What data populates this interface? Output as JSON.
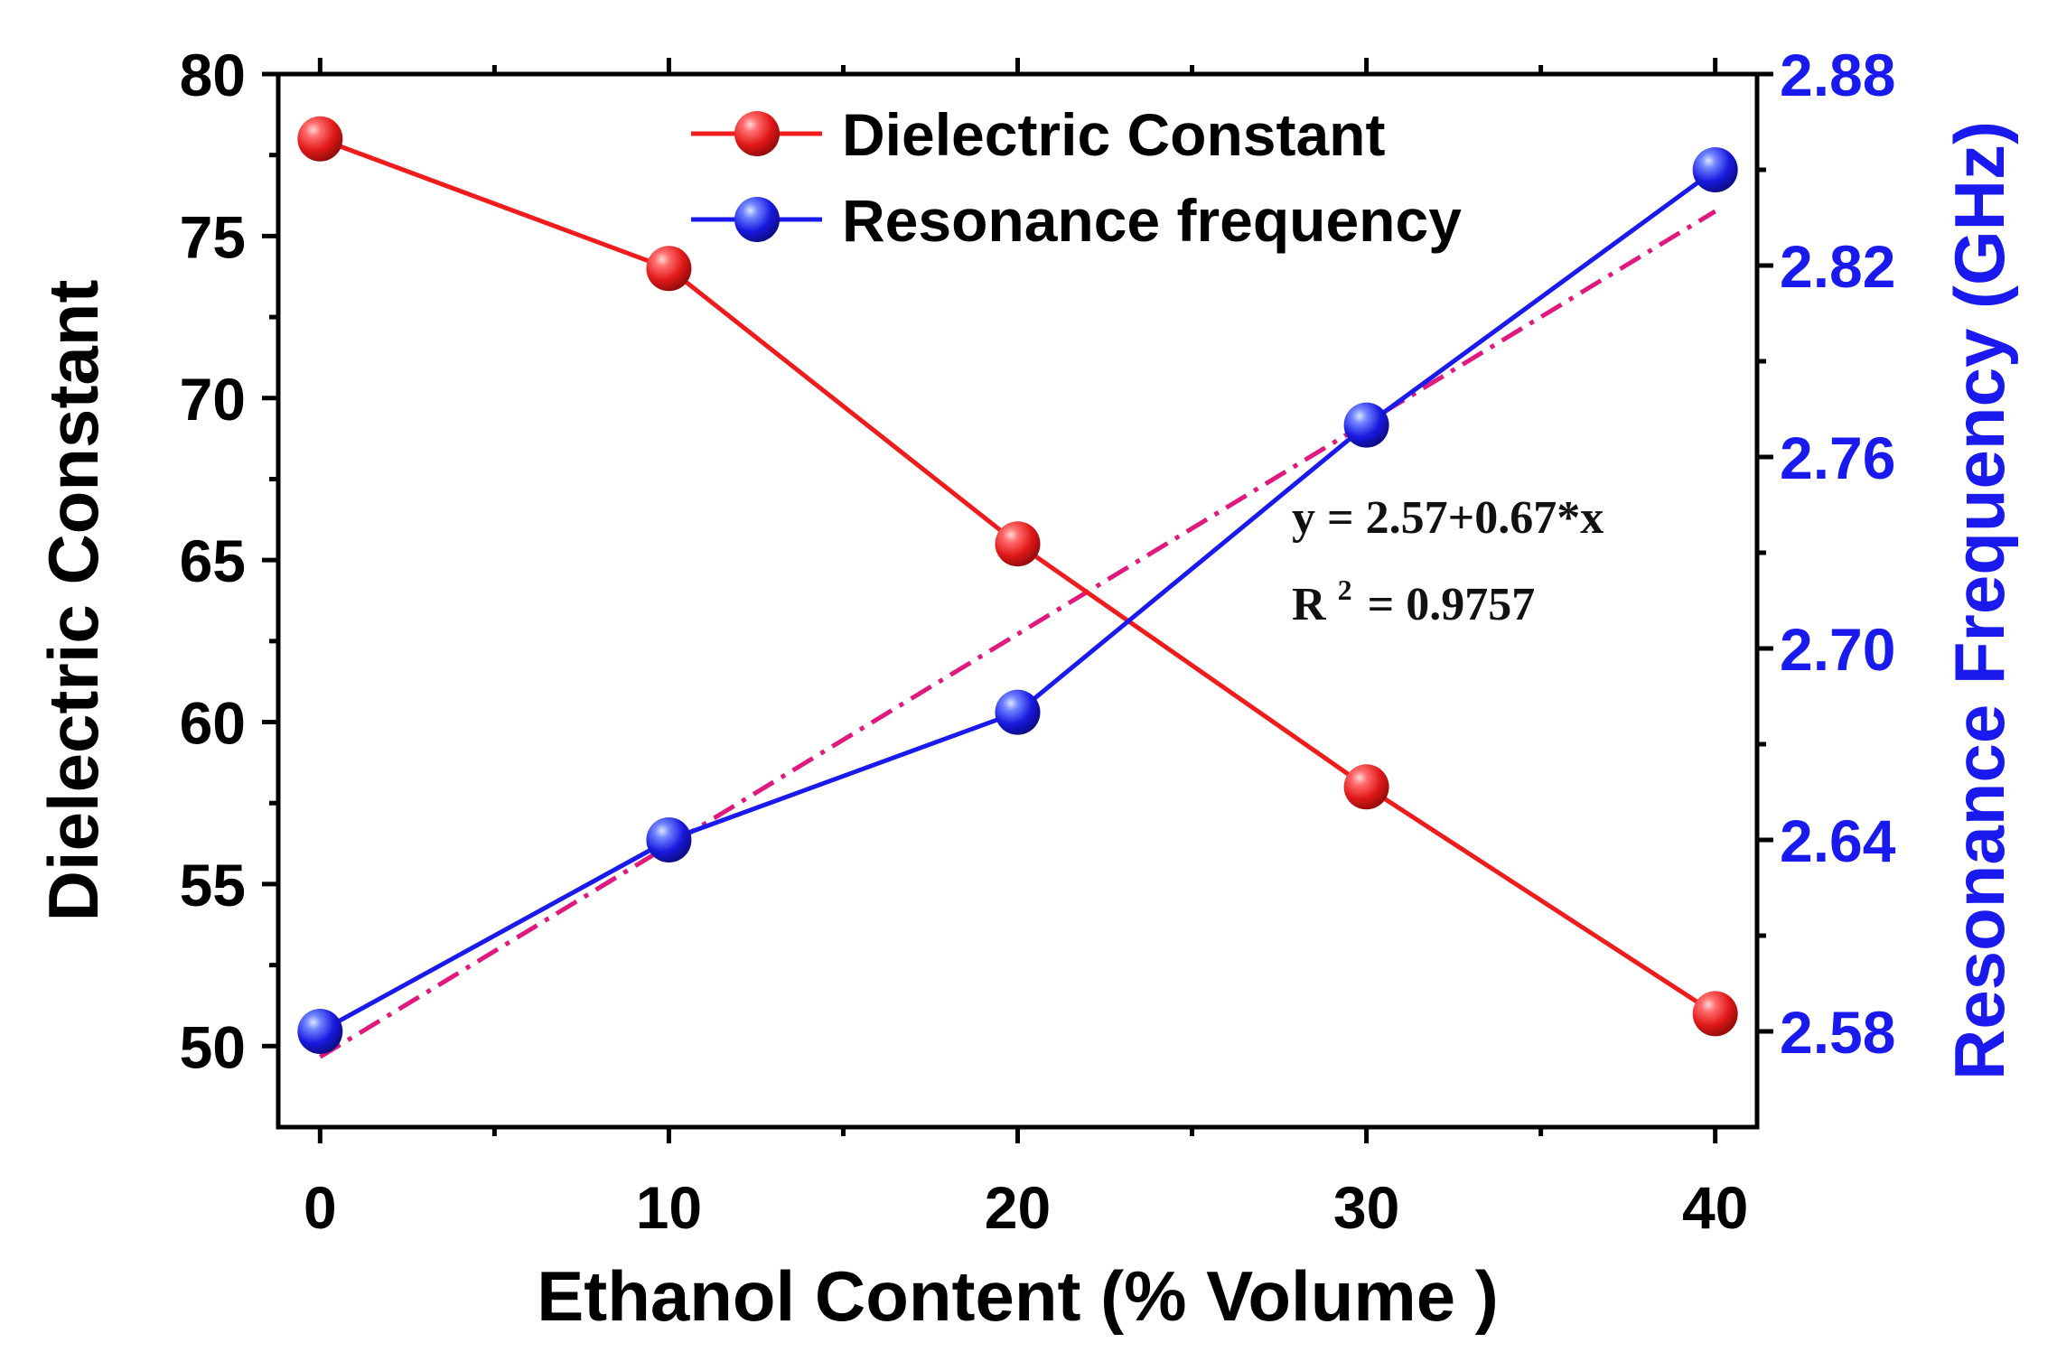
{
  "chart_data": {
    "type": "line",
    "title": "",
    "xlabel": "Ethanol Content (% Volume )",
    "ylabel_left": "Dielectric Constant",
    "ylabel_right": "Resonance Frequency (GHz)",
    "x": [
      0,
      10,
      20,
      30,
      40
    ],
    "x_ticks": [
      0,
      10,
      20,
      30,
      40
    ],
    "x_tick_labels": [
      "0",
      "10",
      "20",
      "30",
      "40"
    ],
    "xlim": [
      -1.2,
      41.2
    ],
    "ylim_left": [
      47.5,
      80
    ],
    "ylim_right": [
      2.55,
      2.88
    ],
    "y_left_ticks": [
      50,
      55,
      60,
      65,
      70,
      75,
      80
    ],
    "y_left_tick_labels": [
      "50",
      "55",
      "60",
      "65",
      "70",
      "75",
      "80"
    ],
    "y_right_ticks": [
      2.58,
      2.64,
      2.7,
      2.76,
      2.82,
      2.88
    ],
    "y_right_tick_labels": [
      "2.58",
      "2.64",
      "2.70",
      "2.76",
      "2.82",
      "2.88"
    ],
    "series": [
      {
        "name": "Dielectric Constant",
        "axis": "left",
        "color": "#ee1c1c",
        "values": [
          78.0,
          74.0,
          65.5,
          58.0,
          51.0
        ]
      },
      {
        "name": "Resonance frequency",
        "axis": "right",
        "color": "#1a1aee",
        "values": [
          2.58,
          2.64,
          2.68,
          2.77,
          2.85
        ]
      }
    ],
    "fit": {
      "axis": "right",
      "color": "#e0197f",
      "style": "dash-dot",
      "start": [
        0,
        2.572
      ],
      "end": [
        40,
        2.837
      ],
      "equation": "y = 2.57+0.67*x",
      "r2_prefix": "R",
      "r2_sup": "2",
      "r2_value": "= 0.9757"
    },
    "legend_placement": "top-center",
    "grid": false
  },
  "colors": {
    "axis": "#000000",
    "left_axis_text": "#000000",
    "right_axis_text": "#1a1aee"
  }
}
